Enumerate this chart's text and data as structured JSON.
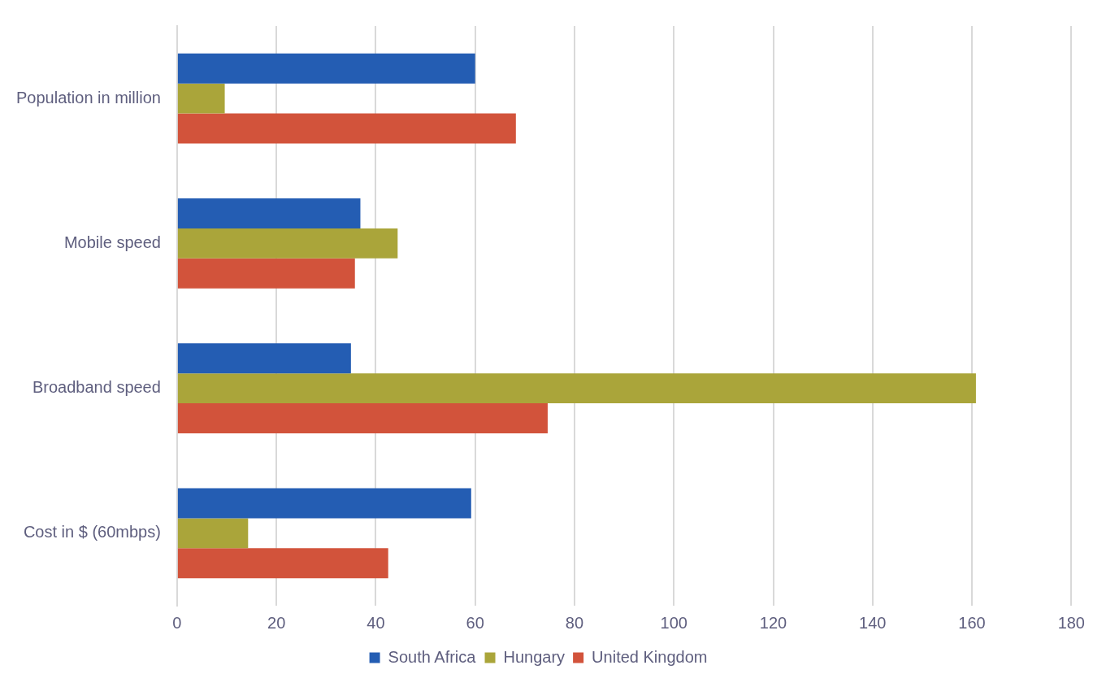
{
  "chart_data": {
    "type": "bar",
    "orientation": "horizontal",
    "categories": [
      "Population in million",
      "Mobile speed",
      "Broadband speed",
      "Cost in $ (60mbps)"
    ],
    "series": [
      {
        "name": "South Africa",
        "color": "#245db3",
        "values": [
          60,
          36.9,
          35,
          59.2
        ]
      },
      {
        "name": "Hungary",
        "color": "#aaa53a",
        "values": [
          9.6,
          44.4,
          160.8,
          14.3
        ]
      },
      {
        "name": "United Kingdom",
        "color": "#d2533b",
        "values": [
          68.2,
          35.8,
          74.6,
          42.5
        ]
      }
    ],
    "xlim": [
      0,
      180
    ],
    "xticks": [
      0,
      20,
      40,
      60,
      80,
      100,
      120,
      140,
      160,
      180
    ],
    "grid": "x",
    "legend": "bottom"
  }
}
